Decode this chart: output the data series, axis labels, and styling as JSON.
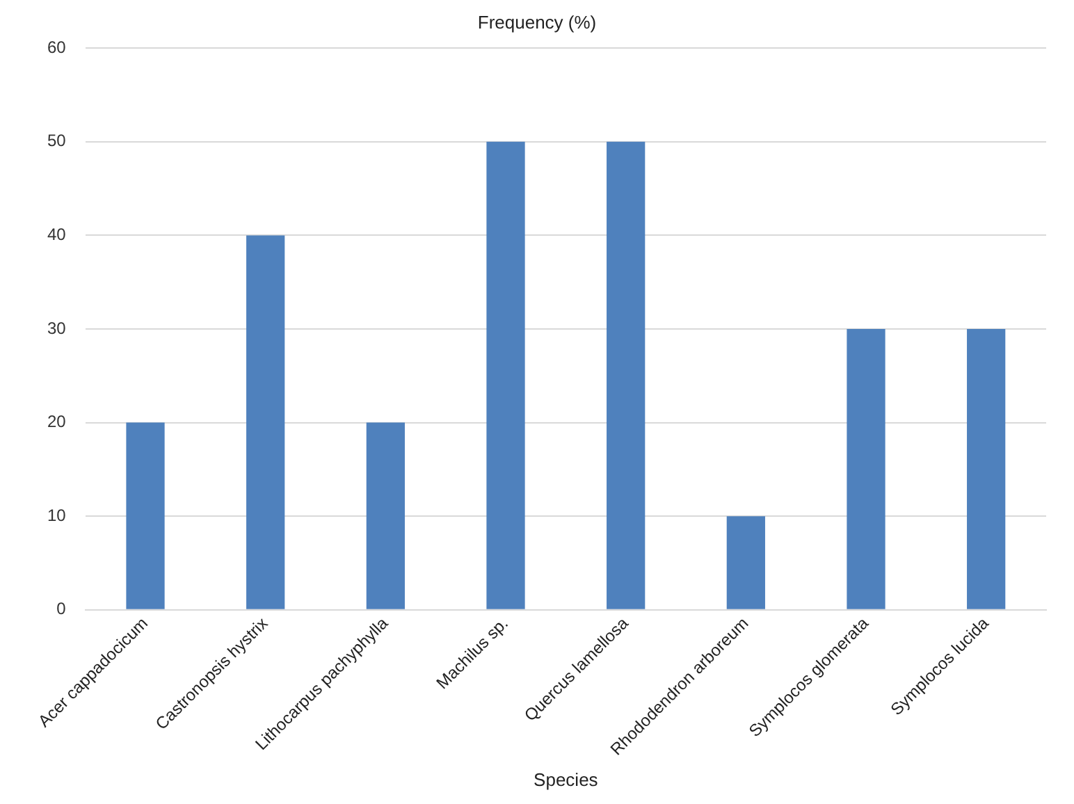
{
  "chart_data": {
    "type": "bar",
    "title": "Frequency (%)",
    "xlabel": "Species",
    "categories": [
      "Acer cappadocicum",
      "Castronopsis hystrix",
      "Lithocarpus pachyphylla",
      "Machilus sp.",
      "Quercus lamellosa",
      "Rhododendron arboreum",
      "Symplocos glomerata",
      "Symplocos lucida"
    ],
    "values": [
      20,
      40,
      20,
      50,
      50,
      10,
      30,
      30
    ],
    "color": "#4f81bd",
    "ylim": [
      0,
      60
    ],
    "yticks": [
      0,
      10,
      20,
      30,
      40,
      50,
      60
    ],
    "grid": "y",
    "legend": false
  }
}
